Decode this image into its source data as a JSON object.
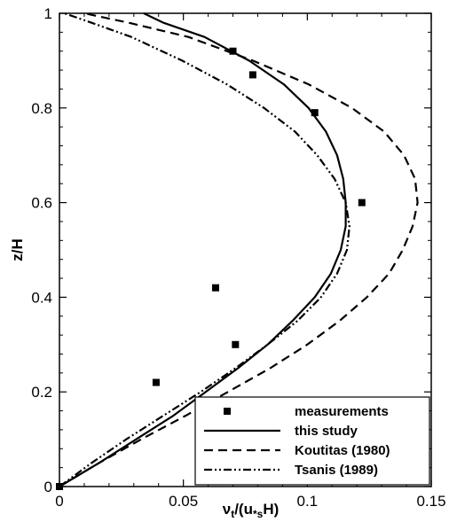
{
  "chart_data": {
    "type": "line",
    "title": "",
    "xlabel": "ν_t/(u*_s H)",
    "ylabel": "z/H",
    "xlim": [
      0,
      0.15
    ],
    "ylim": [
      0,
      1
    ],
    "x_ticks": [
      "0",
      "0.05",
      "0.1",
      "0.15"
    ],
    "y_ticks": [
      "0",
      "0.2",
      "0.4",
      "0.6",
      "0.8",
      "1"
    ],
    "grid": false,
    "legend_position": "bottom-right",
    "series": [
      {
        "name": "measurements",
        "style": "square-markers",
        "color": "#000000",
        "points": [
          [
            0,
            0
          ],
          [
            0.039,
            0.22
          ],
          [
            0.063,
            0.42
          ],
          [
            0.071,
            0.3
          ],
          [
            0.122,
            0.6
          ],
          [
            0.103,
            0.79
          ],
          [
            0.078,
            0.87
          ],
          [
            0.07,
            0.92
          ]
        ]
      },
      {
        "name": "this study",
        "style": "solid",
        "color": "#000000",
        "points": [
          [
            0,
            0
          ],
          [
            0.016,
            0.05
          ],
          [
            0.031,
            0.1
          ],
          [
            0.046,
            0.15
          ],
          [
            0.059,
            0.2
          ],
          [
            0.072,
            0.25
          ],
          [
            0.084,
            0.3
          ],
          [
            0.094,
            0.35
          ],
          [
            0.103,
            0.4
          ],
          [
            0.1095,
            0.45
          ],
          [
            0.1135,
            0.5
          ],
          [
            0.1155,
            0.55
          ],
          [
            0.1155,
            0.6
          ],
          [
            0.1145,
            0.65
          ],
          [
            0.112,
            0.7
          ],
          [
            0.1075,
            0.75
          ],
          [
            0.1005,
            0.8
          ],
          [
            0.0905,
            0.85
          ],
          [
            0.0765,
            0.9
          ],
          [
            0.0585,
            0.95
          ],
          [
            0.042,
            0.98
          ],
          [
            0.034,
            1.0
          ]
        ]
      },
      {
        "name": "Koutitas (1980)",
        "style": "dashed",
        "color": "#000000",
        "points": [
          [
            0,
            0
          ],
          [
            0.016,
            0.05
          ],
          [
            0.033,
            0.1
          ],
          [
            0.051,
            0.15
          ],
          [
            0.068,
            0.2
          ],
          [
            0.085,
            0.25
          ],
          [
            0.1,
            0.3
          ],
          [
            0.113,
            0.35
          ],
          [
            0.124,
            0.4
          ],
          [
            0.133,
            0.45
          ],
          [
            0.1385,
            0.5
          ],
          [
            0.1425,
            0.55
          ],
          [
            0.1445,
            0.6
          ],
          [
            0.1435,
            0.65
          ],
          [
            0.139,
            0.7
          ],
          [
            0.131,
            0.75
          ],
          [
            0.118,
            0.8
          ],
          [
            0.1005,
            0.85
          ],
          [
            0.078,
            0.9
          ],
          [
            0.052,
            0.95
          ],
          [
            0.028,
            0.98
          ],
          [
            0.01,
            1.0
          ]
        ]
      },
      {
        "name": "Tsanis (1989)",
        "style": "dash-dot-dot",
        "color": "#000000",
        "points": [
          [
            0,
            0
          ],
          [
            0.013,
            0.05
          ],
          [
            0.027,
            0.1
          ],
          [
            0.042,
            0.15
          ],
          [
            0.057,
            0.2
          ],
          [
            0.071,
            0.25
          ],
          [
            0.084,
            0.3
          ],
          [
            0.096,
            0.35
          ],
          [
            0.1055,
            0.4
          ],
          [
            0.112,
            0.45
          ],
          [
            0.116,
            0.5
          ],
          [
            0.117,
            0.55
          ],
          [
            0.1155,
            0.6
          ],
          [
            0.111,
            0.65
          ],
          [
            0.104,
            0.7
          ],
          [
            0.095,
            0.75
          ],
          [
            0.0825,
            0.8
          ],
          [
            0.0675,
            0.85
          ],
          [
            0.0495,
            0.9
          ],
          [
            0.029,
            0.95
          ],
          [
            0.013,
            0.98
          ],
          [
            0.002,
            1.0
          ]
        ]
      }
    ]
  }
}
